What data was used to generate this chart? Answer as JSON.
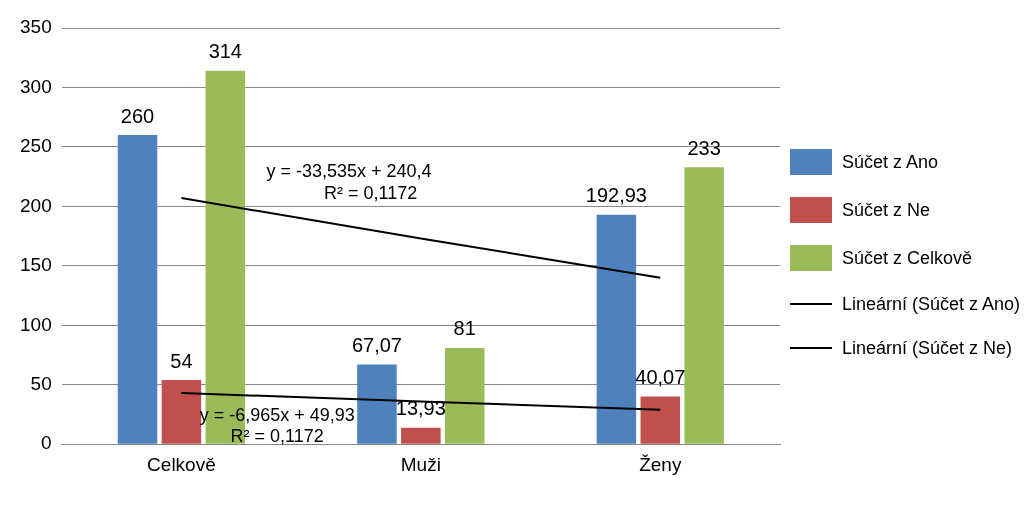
{
  "chart_data": {
    "type": "bar",
    "categories": [
      "Celkově",
      "Muži",
      "Ženy"
    ],
    "series": [
      {
        "name": "Súčet z Ano",
        "color": "#4f81bd",
        "values": [
          260,
          67.07,
          192.93
        ],
        "value_labels": [
          "260",
          "67,07",
          "192,93"
        ]
      },
      {
        "name": "Súčet z Ne",
        "color": "#c0504d",
        "values": [
          54,
          13.93,
          40.07
        ],
        "value_labels": [
          "54",
          "13,93",
          "40,07"
        ]
      },
      {
        "name": "Súčet z Celkově",
        "color": "#9bbb59",
        "values": [
          314,
          81,
          233
        ],
        "value_labels": [
          "314",
          "81",
          "233"
        ]
      },
      {
        "name": "Lineární (Súčet z Ano)",
        "type": "line",
        "color": "#000000",
        "values": [
          207,
          173,
          140
        ]
      },
      {
        "name": "Lineární (Súčet z Ne)",
        "type": "line",
        "color": "#000000",
        "values": [
          43,
          36,
          29
        ]
      }
    ],
    "annotations": [
      "y = -33,535x + 240,4",
      "R² = 0,1172",
      "y = -6,965x + 49,93",
      "R² = 0,1172"
    ],
    "ylim": [
      0,
      350
    ],
    "yticks": [
      0,
      50,
      100,
      150,
      200,
      250,
      300,
      350
    ],
    "grid": "y",
    "legend": "right",
    "marker": "none",
    "line_style": "solid"
  }
}
